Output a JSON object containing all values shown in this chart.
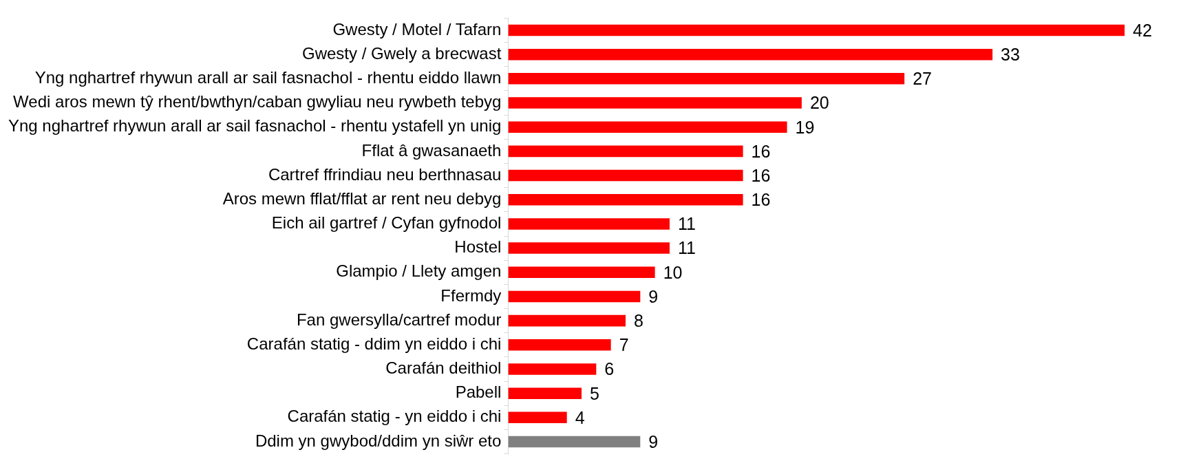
{
  "chart_data": {
    "type": "bar",
    "orientation": "horizontal",
    "data_labels": true,
    "grid": false,
    "legend": false,
    "categories": [
      "Gwesty / Motel / Tafarn",
      "Gwesty / Gwely a brecwast",
      "Yng nghartref rhywun arall ar sail fasnachol - rhentu eiddo llawn",
      "Wedi aros mewn tŷ rhent/bwthyn/caban gwyliau neu rywbeth tebyg",
      "Yng nghartref rhywun arall ar sail fasnachol - rhentu ystafell yn unig",
      "Fflat â gwasanaeth",
      "Cartref ffrindiau neu berthnasau",
      "Aros mewn fflat/fflat ar rent neu debyg",
      "Eich ail gartref / Cyfan gyfnodol",
      "Hostel",
      "Glampio / Llety amgen",
      "Ffermdy",
      "Fan gwersylla/cartref modur",
      "Carafán statig - ddim yn eiddo i chi",
      "Carafán deithiol",
      "Pabell",
      "Carafán statig - yn eiddo i chi",
      "Ddim yn gwybod/ddim yn siŵr eto"
    ],
    "values": [
      42,
      33,
      27,
      20,
      19,
      16,
      16,
      16,
      11,
      11,
      10,
      9,
      8,
      7,
      6,
      5,
      4,
      9
    ],
    "colors": [
      "#ff0000",
      "#ff0000",
      "#ff0000",
      "#ff0000",
      "#ff0000",
      "#ff0000",
      "#ff0000",
      "#ff0000",
      "#ff0000",
      "#ff0000",
      "#ff0000",
      "#ff0000",
      "#ff0000",
      "#ff0000",
      "#ff0000",
      "#ff0000",
      "#ff0000",
      "#808080"
    ]
  }
}
